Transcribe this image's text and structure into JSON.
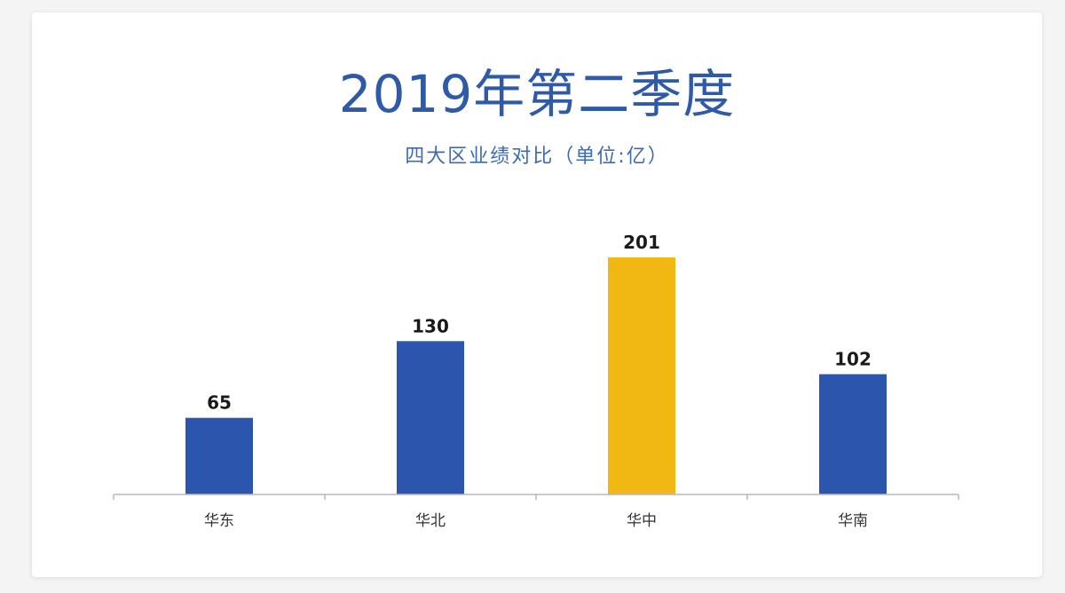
{
  "title": "2019年第二季度",
  "subtitle": "四大区业绩对比（单位:亿）",
  "colors": {
    "title": "#2f5aa8",
    "bar_default": "#2c55ad",
    "bar_highlight": "#f1b814",
    "axis": "#b8b8b8",
    "value_label": "#1a1a1a",
    "category_label": "#333333"
  },
  "chart_data": {
    "type": "bar",
    "title": "2019年第二季度",
    "subtitle": "四大区业绩对比（单位:亿）",
    "categories": [
      "华东",
      "华北",
      "华中",
      "华南"
    ],
    "values": [
      65,
      130,
      201,
      102
    ],
    "value_labels": [
      "65",
      "130",
      "201",
      "102"
    ],
    "highlight_index": 2,
    "ylim": [
      0,
      201
    ],
    "grid": false,
    "legend": "none",
    "xlabel": "",
    "ylabel": ""
  }
}
